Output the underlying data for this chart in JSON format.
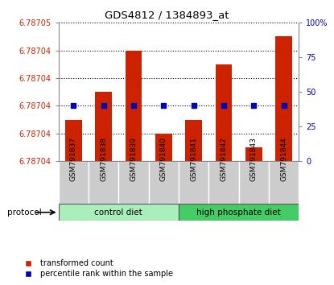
{
  "title": "GDS4812 / 1384893_at",
  "samples": [
    "GSM791837",
    "GSM791838",
    "GSM791839",
    "GSM791840",
    "GSM791841",
    "GSM791842",
    "GSM791843",
    "GSM791844"
  ],
  "groups": [
    "control diet",
    "control diet",
    "control diet",
    "control diet",
    "high phosphate diet",
    "high phosphate diet",
    "high phosphate diet",
    "high phosphate diet"
  ],
  "ymin": 6.78704,
  "ymax": 6.78705,
  "red_tops": [
    6.787043,
    6.787045,
    6.787048,
    6.787042,
    6.787043,
    6.787047,
    6.787041,
    6.787049
  ],
  "blue_pct": [
    40,
    40,
    40,
    40,
    40,
    40,
    40,
    40
  ],
  "left_ytick_vals": [
    6.78704,
    6.787042,
    6.787044,
    6.787046,
    6.787048,
    6.78705
  ],
  "left_ytick_labels": [
    "6.78704",
    "6.78704",
    "6.78704",
    "6.78704",
    "6.78704",
    "6.78705"
  ],
  "right_ytick_vals": [
    0,
    25,
    50,
    75,
    100
  ],
  "right_ytick_labels": [
    "0",
    "25",
    "50",
    "75",
    "100%"
  ],
  "bar_color": "#CC2200",
  "blue_color": "#0000BB",
  "ctrl_color": "#AAEEBB",
  "high_color": "#44CC66",
  "label_bg": "#CCCCCC",
  "legend_items": [
    "transformed count",
    "percentile rank within the sample"
  ]
}
